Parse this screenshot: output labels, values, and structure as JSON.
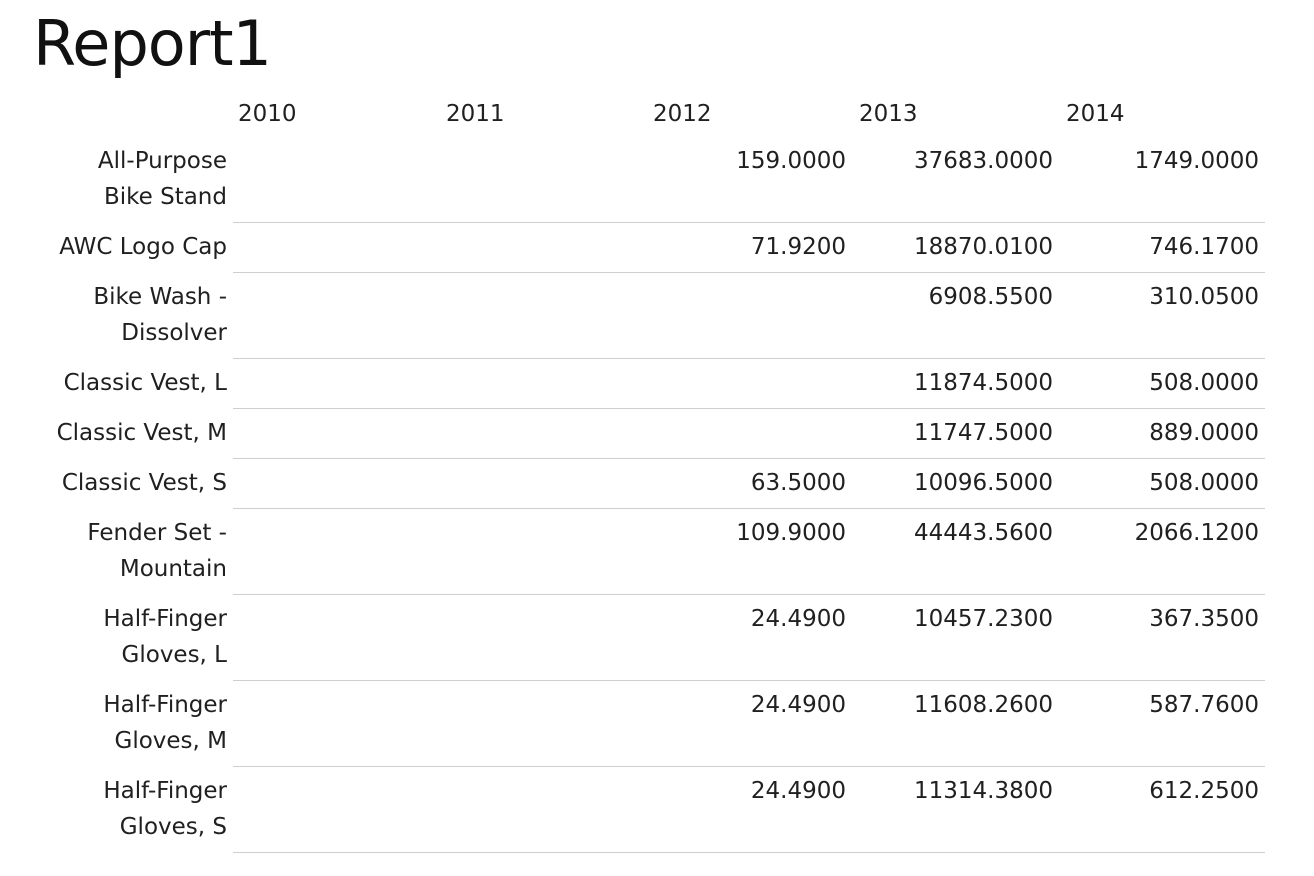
{
  "report": {
    "title": "Report1"
  },
  "matrix": {
    "columns": [
      "2010",
      "2011",
      "2012",
      "2013",
      "2014"
    ],
    "rows": [
      {
        "label": "All-Purpose\nBike Stand",
        "values": [
          "",
          "",
          "159.0000",
          "37683.0000",
          "1749.0000"
        ]
      },
      {
        "label": "AWC Logo Cap",
        "values": [
          "",
          "",
          "71.9200",
          "18870.0100",
          "746.1700"
        ]
      },
      {
        "label": "Bike Wash -\nDissolver",
        "values": [
          "",
          "",
          "",
          "6908.5500",
          "310.0500"
        ]
      },
      {
        "label": "Classic Vest, L",
        "values": [
          "",
          "",
          "",
          "11874.5000",
          "508.0000"
        ]
      },
      {
        "label": "Classic Vest, M",
        "values": [
          "",
          "",
          "",
          "11747.5000",
          "889.0000"
        ]
      },
      {
        "label": "Classic Vest, S",
        "values": [
          "",
          "",
          "63.5000",
          "10096.5000",
          "508.0000"
        ]
      },
      {
        "label": "Fender Set -\nMountain",
        "values": [
          "",
          "",
          "109.9000",
          "44443.5600",
          "2066.1200"
        ]
      },
      {
        "label": "Half-Finger\nGloves, L",
        "values": [
          "",
          "",
          "24.4900",
          "10457.2300",
          "367.3500"
        ]
      },
      {
        "label": "Half-Finger\nGloves, M",
        "values": [
          "",
          "",
          "24.4900",
          "11608.2600",
          "587.7600"
        ]
      },
      {
        "label": "Half-Finger\nGloves, S",
        "values": [
          "",
          "",
          "24.4900",
          "11314.3800",
          "612.2500"
        ]
      }
    ]
  }
}
